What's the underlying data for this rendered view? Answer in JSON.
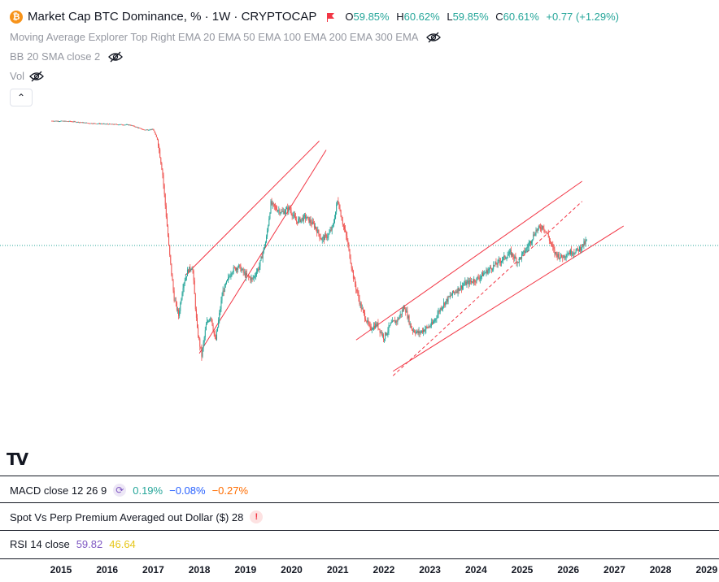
{
  "legend": {
    "logo_glyph": "₿",
    "title": "Market Cap BTC Dominance, % · 1W · CRYPTOCAP",
    "ohlc": [
      {
        "key": "O",
        "value": "59.85%"
      },
      {
        "key": "H",
        "value": "60.62%"
      },
      {
        "key": "L",
        "value": "59.85%"
      },
      {
        "key": "C",
        "value": "60.61%"
      }
    ],
    "change": "+0.77 (+1.29%)",
    "ma_label": "Moving Average Explorer Top Right EMA 20 EMA 50 EMA 100 EMA 200 EMA 300 EMA",
    "bb_label": "BB 20 SMA close 2",
    "vol_label": "Vol",
    "collapse_glyph": "⌃"
  },
  "indicators": {
    "macd": {
      "label": "MACD close 12 26 9",
      "values": [
        "0.19%",
        "−0.08%",
        "−0.27%"
      ],
      "colors": [
        "#26a69a",
        "#2962ff",
        "#ff6d00"
      ]
    },
    "spot": {
      "label": "Spot Vs Perp Premium Averaged out Dollar ($) 28",
      "warn_glyph": "!"
    },
    "rsi": {
      "label": "RSI 14 close",
      "values": [
        "59.82",
        "46.64"
      ],
      "colors": [
        "#7e57c2",
        "#fdd835"
      ]
    }
  },
  "tv_logo": "TV",
  "colors": {
    "up": "#26a69a",
    "down": "#ef5350",
    "trend": "#f23645",
    "price_line": "#26a69a"
  },
  "chart_data": {
    "type": "candlestick",
    "title": "Market Cap BTC Dominance, % · 1W · CRYPTOCAP",
    "x_ticks": [
      "2015",
      "2016",
      "2017",
      "2018",
      "2019",
      "2020",
      "2021",
      "2022",
      "2023",
      "2024",
      "2025",
      "2026",
      "2027",
      "2028",
      "2029"
    ],
    "series": [
      {
        "values": [
          [
            2014.8,
            87.5
          ],
          [
            2015.2,
            87.4
          ],
          [
            2015.6,
            87.0
          ],
          [
            2016.0,
            86.8
          ],
          [
            2016.5,
            86.6
          ],
          [
            2016.8,
            85.5
          ],
          [
            2017.0,
            85.6
          ],
          [
            2017.1,
            83.0
          ],
          [
            2017.2,
            76.0
          ],
          [
            2017.35,
            58.0
          ],
          [
            2017.45,
            48.0
          ],
          [
            2017.55,
            44.0
          ],
          [
            2017.65,
            51.0
          ],
          [
            2017.75,
            54.0
          ],
          [
            2017.85,
            55.0
          ],
          [
            2017.95,
            41.0
          ],
          [
            2018.05,
            35.0
          ],
          [
            2018.15,
            42.0
          ],
          [
            2018.25,
            44.0
          ],
          [
            2018.35,
            38.0
          ],
          [
            2018.5,
            49.0
          ],
          [
            2018.7,
            54.0
          ],
          [
            2018.85,
            55.0
          ],
          [
            2019.0,
            53.0
          ],
          [
            2019.15,
            52.0
          ],
          [
            2019.3,
            55.0
          ],
          [
            2019.45,
            61.0
          ],
          [
            2019.55,
            69.0
          ],
          [
            2019.65,
            68.0
          ],
          [
            2019.8,
            67.0
          ],
          [
            2019.95,
            68.0
          ],
          [
            2020.1,
            65.0
          ],
          [
            2020.3,
            66.0
          ],
          [
            2020.5,
            64.0
          ],
          [
            2020.65,
            61.0
          ],
          [
            2020.8,
            62.0
          ],
          [
            2020.9,
            64.0
          ],
          [
            2021.0,
            70.0
          ],
          [
            2021.1,
            65.0
          ],
          [
            2021.2,
            61.0
          ],
          [
            2021.35,
            52.0
          ],
          [
            2021.5,
            46.0
          ],
          [
            2021.7,
            41.0
          ],
          [
            2021.85,
            42.0
          ],
          [
            2022.0,
            39.0
          ],
          [
            2022.15,
            42.0
          ],
          [
            2022.3,
            43.0
          ],
          [
            2022.45,
            46.0
          ],
          [
            2022.6,
            41.0
          ],
          [
            2022.75,
            40.0
          ],
          [
            2022.9,
            41.0
          ],
          [
            2023.05,
            42.0
          ],
          [
            2023.25,
            46.0
          ],
          [
            2023.5,
            49.0
          ],
          [
            2023.75,
            51.0
          ],
          [
            2024.0,
            52.0
          ],
          [
            2024.25,
            54.0
          ],
          [
            2024.5,
            56.0
          ],
          [
            2024.75,
            58.0
          ],
          [
            2024.9,
            56.0
          ],
          [
            2025.1,
            59.0
          ],
          [
            2025.3,
            63.0
          ],
          [
            2025.45,
            64.0
          ],
          [
            2025.55,
            62.0
          ],
          [
            2025.7,
            58.0
          ],
          [
            2025.85,
            57.0
          ],
          [
            2026.0,
            58.0
          ],
          [
            2026.2,
            58.5
          ],
          [
            2026.4,
            60.6
          ]
        ]
      }
    ],
    "y_unit": "%",
    "last_value": 60.61,
    "trendlines": 6
  }
}
